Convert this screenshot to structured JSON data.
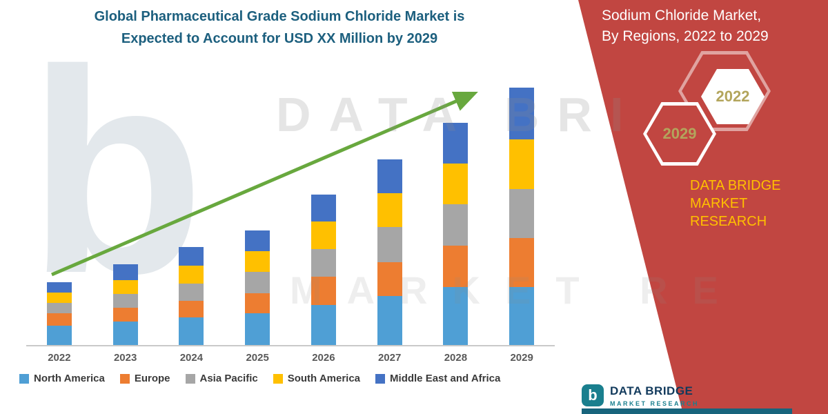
{
  "header": {
    "title_line1": "Global Pharmaceutical Grade Sodium Chloride Market is",
    "title_line2": "Expected to Account for USD XX Million by 2029"
  },
  "side_panel": {
    "panel_color": "#C14641",
    "title_line1": "Sodium Chloride Market,",
    "title_line2": "By Regions, 2022 to 2029",
    "hexagon_year_front": "2022",
    "hexagon_year_back": "2029",
    "brand_line1": "DATA BRIDGE MARKET",
    "brand_line2": "RESEARCH",
    "brand_color": "#FFC000"
  },
  "watermark": {
    "logo_glyph": "b",
    "text_line1": "DATA BRI",
    "text_line2": "MARKET RE"
  },
  "footer_logo": {
    "brand": "DATA BRIDGE",
    "tagline": "MARKET RESEARCH",
    "glyph": "b"
  },
  "chart_data": {
    "type": "bar",
    "stacked": true,
    "title": "Global Pharmaceutical Grade Sodium Chloride Market is Expected to Account for USD XX Million by 2029",
    "categories": [
      "2022",
      "2023",
      "2024",
      "2025",
      "2026",
      "2027",
      "2028",
      "2029"
    ],
    "series": [
      {
        "name": "North America",
        "color": "#4F9FD5",
        "values": [
          2.8,
          3.3,
          3.9,
          4.5,
          5.7,
          7.0,
          8.3,
          8.3
        ]
      },
      {
        "name": "Europe",
        "color": "#ED7D31",
        "values": [
          1.7,
          2.0,
          2.4,
          2.9,
          4.0,
          4.8,
          5.9,
          7.0
        ]
      },
      {
        "name": "Asia Pacific",
        "color": "#A6A6A6",
        "values": [
          1.5,
          2.0,
          2.5,
          3.0,
          4.0,
          5.0,
          5.9,
          7.0
        ]
      },
      {
        "name": "South America",
        "color": "#FFC000",
        "values": [
          1.5,
          2.0,
          2.5,
          3.0,
          3.9,
          4.9,
          5.8,
          7.0
        ]
      },
      {
        "name": "Middle East and Africa",
        "color": "#4472C4",
        "values": [
          1.5,
          2.2,
          2.7,
          2.9,
          3.9,
          4.8,
          5.8,
          7.4
        ]
      }
    ],
    "ylim": [
      0,
      38
    ],
    "y_axis_visible": false,
    "gridlines": false,
    "legend_position": "bottom",
    "trend_arrow": {
      "color": "#68A83E",
      "direction": "up",
      "from_category": "2022",
      "to_category": "2029"
    }
  }
}
